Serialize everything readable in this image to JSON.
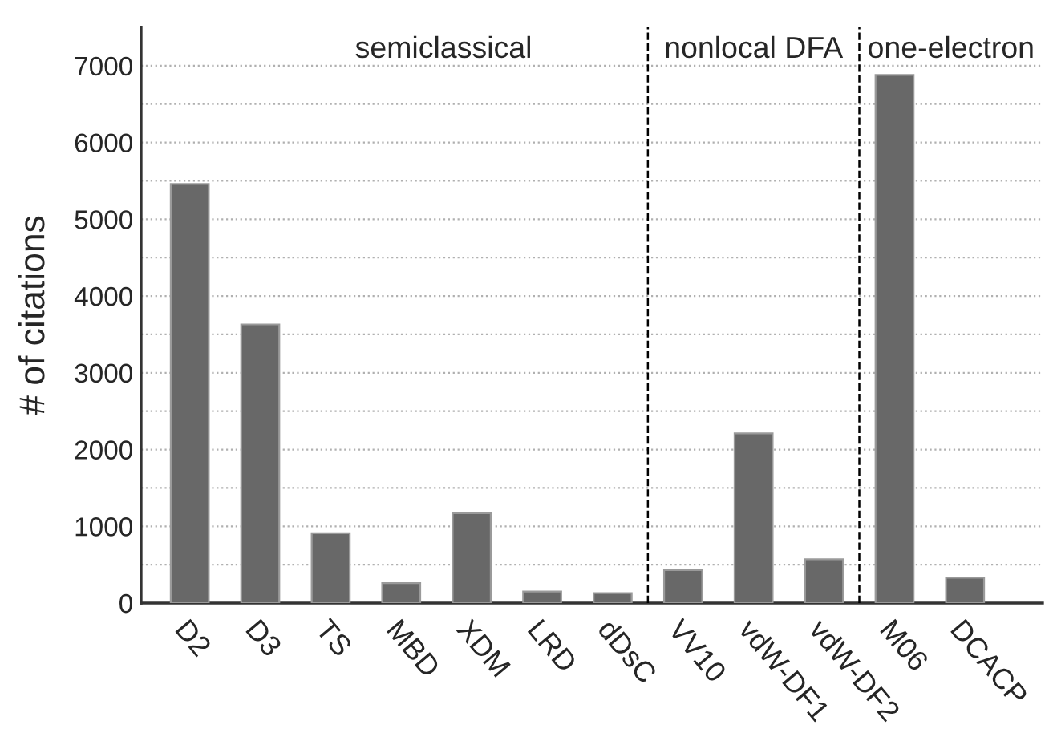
{
  "chart_data": {
    "type": "bar",
    "ylabel": "# of citations",
    "categories": [
      "D2",
      "D3",
      "TS",
      "MBD",
      "XDM",
      "LRD",
      "dDsC",
      "VV10",
      "vdW-DF1",
      "vdW-DF2",
      "M06",
      "DCACP"
    ],
    "values": [
      5460,
      3630,
      910,
      260,
      1170,
      150,
      130,
      430,
      2210,
      570,
      6880,
      330
    ],
    "color": "#686868",
    "ylim": [
      0,
      7500
    ],
    "yticks": [
      0,
      {
        "value": 500,
        "label": null
      },
      1000,
      {
        "value": 1500,
        "label": null
      },
      2000,
      {
        "value": 2500,
        "label": null
      },
      3000,
      {
        "value": 3500,
        "label": null
      },
      4000,
      {
        "value": 4500,
        "label": null
      },
      5000,
      {
        "value": 5500,
        "label": null
      },
      6000,
      {
        "value": 6500,
        "label": null
      },
      7000
    ],
    "grid": "y",
    "annotations": [
      "semiclassical",
      "nonlocal DFA",
      "one-electron"
    ]
  }
}
